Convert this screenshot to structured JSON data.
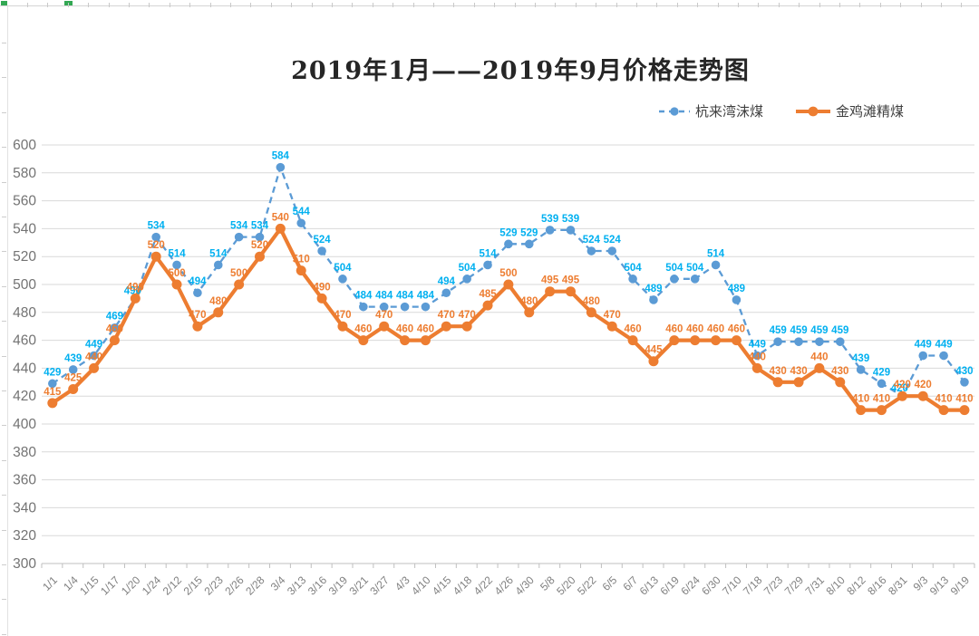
{
  "chart_data": {
    "type": "line",
    "title": "2019年1月——2019年9月价格走势图",
    "categories": [
      "1/1",
      "1/4",
      "1/15",
      "1/17",
      "1/20",
      "1/24",
      "2/12",
      "2/15",
      "2/23",
      "2/26",
      "2/28",
      "3/4",
      "3/13",
      "3/16",
      "3/19",
      "3/21",
      "3/27",
      "4/3",
      "4/10",
      "4/15",
      "4/18",
      "4/22",
      "4/26",
      "4/30",
      "5/8",
      "5/20",
      "5/22",
      "6/5",
      "6/7",
      "6/13",
      "6/19",
      "6/24",
      "6/30",
      "7/10",
      "7/18",
      "7/23",
      "7/29",
      "7/31",
      "8/10",
      "8/12",
      "8/16",
      "8/31",
      "9/3",
      "9/13",
      "9/19"
    ],
    "series": [
      {
        "name": "杭来湾沫煤",
        "line_style": "dashed",
        "marker": "circle",
        "color": "#5B9BD5",
        "label_color": "#00B0F0",
        "values": [
          429,
          439,
          449,
          469,
          490,
          534,
          514,
          494,
          514,
          534,
          534,
          584,
          544,
          524,
          504,
          484,
          484,
          484,
          484,
          494,
          504,
          514,
          529,
          529,
          539,
          539,
          524,
          524,
          504,
          489,
          504,
          504,
          514,
          489,
          449,
          459,
          459,
          459,
          459,
          439,
          429,
          420,
          449,
          449,
          430
        ]
      },
      {
        "name": "金鸡滩精煤",
        "line_style": "solid",
        "marker": "circle",
        "color": "#ED7D31",
        "label_color": "#ED7D31",
        "values": [
          415,
          425,
          440,
          460,
          490,
          520,
          500,
          470,
          480,
          500,
          520,
          540,
          510,
          490,
          470,
          460,
          470,
          460,
          460,
          470,
          470,
          485,
          500,
          480,
          495,
          495,
          480,
          470,
          460,
          445,
          460,
          460,
          460,
          460,
          440,
          430,
          430,
          440,
          430,
          410,
          410,
          420,
          420,
          410,
          410
        ]
      }
    ],
    "ylim": [
      300,
      600
    ],
    "ytick_step": 20,
    "yticks": [
      300,
      320,
      340,
      360,
      380,
      400,
      420,
      440,
      460,
      480,
      500,
      520,
      540,
      560,
      580,
      600
    ],
    "grid": true,
    "data_labels": "above",
    "legend_position": "top-right",
    "colors": {
      "gridline": "#D9D9D9",
      "axis_line": "#BFBFBF",
      "y_tick_text": "#737373",
      "x_tick_text": "#808080"
    }
  }
}
